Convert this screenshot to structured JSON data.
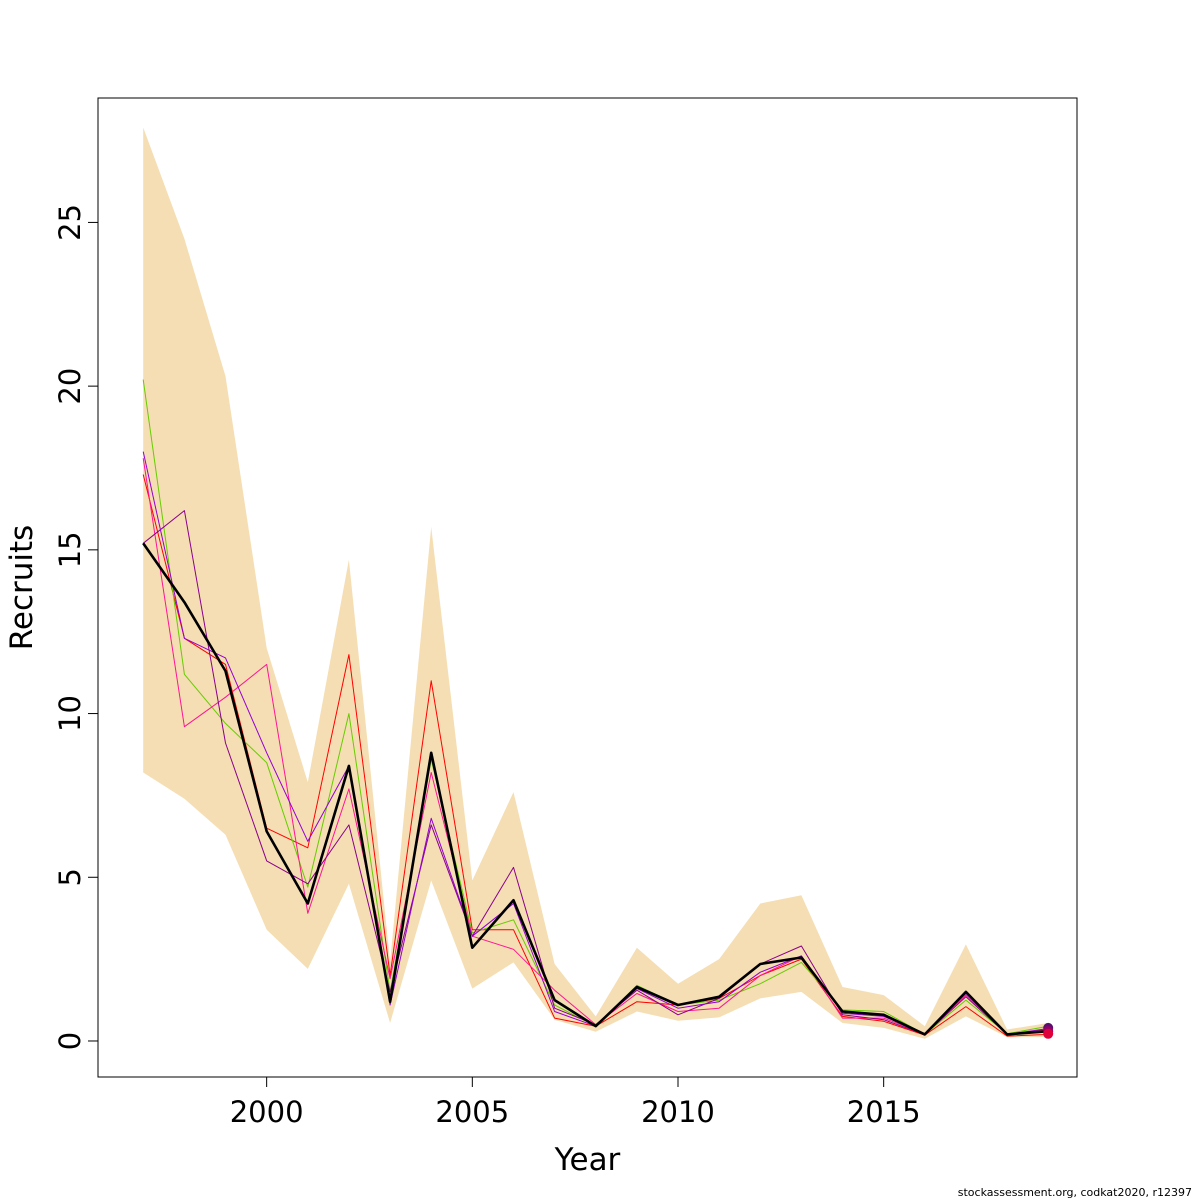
{
  "chart_data": {
    "type": "line",
    "title": "",
    "xlabel": "Year",
    "ylabel": "Recruits",
    "xlim": [
      1995.9,
      2019.7
    ],
    "ylim": [
      -1.1,
      28.8
    ],
    "x_ticks": [
      2000,
      2005,
      2010,
      2015
    ],
    "x_tick_labels": [
      "2000",
      "2005",
      "2010",
      "2015"
    ],
    "y_ticks": [
      0,
      5,
      10,
      15,
      20,
      25
    ],
    "y_tick_labels": [
      "0",
      "5",
      "10",
      "15",
      "20",
      "25"
    ],
    "grid": false,
    "legend": "none",
    "x": [
      1997,
      1998,
      1999,
      2000,
      2001,
      2002,
      2003,
      2004,
      2005,
      2006,
      2007,
      2008,
      2009,
      2010,
      2011,
      2012,
      2013,
      2014,
      2015,
      2016,
      2017,
      2018,
      2019
    ],
    "band": {
      "color": "#F5DEB3",
      "lower": [
        8.2,
        7.4,
        6.3,
        3.4,
        2.2,
        4.8,
        0.55,
        4.9,
        1.6,
        2.4,
        0.65,
        0.28,
        0.9,
        0.62,
        0.72,
        1.3,
        1.5,
        0.55,
        0.4,
        0.07,
        0.75,
        0.12,
        0.12
      ],
      "upper": [
        27.9,
        24.5,
        20.3,
        12.0,
        7.9,
        14.7,
        2.4,
        15.7,
        4.9,
        7.6,
        2.35,
        0.75,
        2.85,
        1.75,
        2.5,
        4.2,
        4.45,
        1.65,
        1.4,
        0.45,
        2.95,
        0.35,
        0.55
      ]
    },
    "series": [
      {
        "color": "#000000",
        "width": 2.6,
        "values": [
          15.2,
          13.4,
          11.3,
          6.4,
          4.2,
          8.4,
          1.2,
          8.8,
          2.85,
          4.3,
          1.25,
          0.45,
          1.65,
          1.1,
          1.35,
          2.35,
          2.55,
          0.9,
          0.8,
          0.2,
          1.5,
          0.2,
          0.3
        ]
      },
      {
        "color": "#FF0000",
        "width": 1,
        "values": [
          17.3,
          12.3,
          11.5,
          6.5,
          5.9,
          11.8,
          2.0,
          11.0,
          3.4,
          3.4,
          0.7,
          0.45,
          1.2,
          1.1,
          1.3,
          2.0,
          2.5,
          0.75,
          0.6,
          0.18,
          1.05,
          0.15,
          0.2
        ]
      },
      {
        "color": "#66CC00",
        "width": 1,
        "values": [
          20.2,
          11.2,
          9.7,
          8.5,
          4.7,
          10.0,
          1.5,
          8.6,
          3.3,
          3.7,
          1.1,
          0.45,
          1.7,
          1.1,
          1.25,
          1.75,
          2.4,
          0.95,
          0.9,
          0.2,
          1.25,
          0.22,
          0.45
        ]
      },
      {
        "color": "#FF1493",
        "width": 1,
        "values": [
          17.8,
          9.6,
          10.5,
          11.5,
          3.9,
          7.7,
          1.9,
          8.2,
          3.2,
          2.8,
          1.55,
          0.5,
          1.45,
          0.9,
          1.0,
          2.0,
          2.6,
          0.7,
          0.7,
          0.22,
          1.4,
          0.2,
          0.35
        ]
      },
      {
        "color": "#8B008B",
        "width": 1,
        "values": [
          15.2,
          16.2,
          9.1,
          5.5,
          4.8,
          6.6,
          1.5,
          6.6,
          3.2,
          5.3,
          1.0,
          0.5,
          1.55,
          0.8,
          1.3,
          2.35,
          2.9,
          0.8,
          0.65,
          0.2,
          1.35,
          0.2,
          0.3
        ]
      },
      {
        "color": "#9400D3",
        "width": 1,
        "values": [
          18.0,
          12.3,
          11.7,
          8.8,
          6.1,
          8.4,
          1.1,
          6.8,
          3.2,
          4.2,
          0.9,
          0.45,
          1.6,
          1.0,
          1.2,
          2.1,
          2.6,
          0.85,
          0.75,
          0.22,
          1.45,
          0.2,
          0.38
        ]
      }
    ],
    "end_points": [
      {
        "x": 2019,
        "y": 0.4,
        "color": "#5A0F6E"
      },
      {
        "x": 2019,
        "y": 0.3,
        "color": "#990066"
      },
      {
        "x": 2019,
        "y": 0.22,
        "color": "#E0003C"
      }
    ]
  },
  "footer": {
    "credit": "stockassessment.org, codkat2020, r12397"
  }
}
